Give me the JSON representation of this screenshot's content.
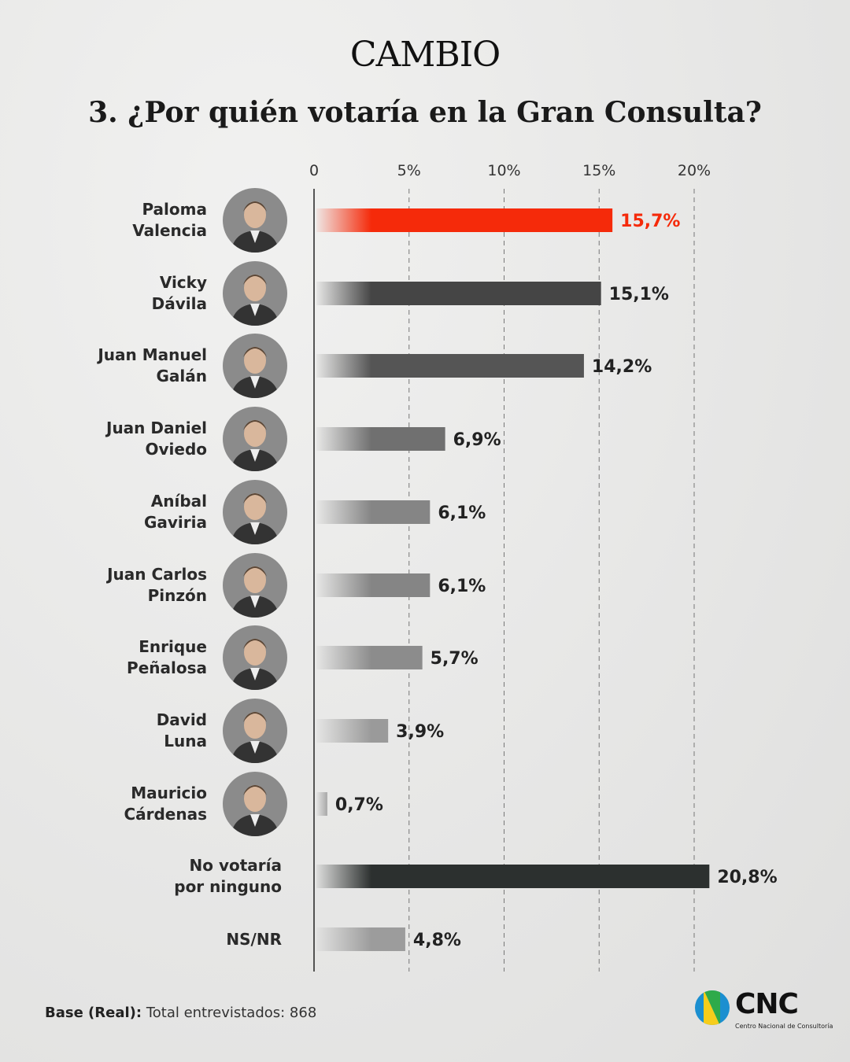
{
  "brand": "CAMBIO",
  "chart_data": {
    "type": "bar",
    "orientation": "horizontal",
    "title": "3. ¿Por quién votaría en la Gran Consulta?",
    "xlim": [
      0,
      20
    ],
    "ticks": [
      "0",
      "5%",
      "10%",
      "15%",
      "20%"
    ],
    "grid": "vertical dashed",
    "categories": [
      "Paloma Valencia",
      "Vicky Dávila",
      "Juan Manuel Galán",
      "Juan Daniel Oviedo",
      "Aníbal Gaviria",
      "Juan Carlos Pinzón",
      "Enrique Peñalosa",
      "David Luna",
      "Mauricio Cárdenas",
      "No votaría por ninguno",
      "NS/NR"
    ],
    "label_lines": [
      [
        "Paloma",
        "Valencia"
      ],
      [
        "Vicky",
        "Dávila"
      ],
      [
        "Juan Manuel",
        "Galán"
      ],
      [
        "Juan Daniel",
        "Oviedo"
      ],
      [
        "Aníbal",
        "Gaviria"
      ],
      [
        "Juan Carlos",
        "Pinzón"
      ],
      [
        "Enrique",
        "Peñalosa"
      ],
      [
        "David",
        "Luna"
      ],
      [
        "Mauricio",
        "Cárdenas"
      ],
      [
        "No votaría",
        "por ninguno"
      ],
      [
        "NS/NR"
      ]
    ],
    "values": [
      15.7,
      15.1,
      14.2,
      6.9,
      6.1,
      6.1,
      5.7,
      3.9,
      0.7,
      20.8,
      4.8
    ],
    "value_labels": [
      "15,7%",
      "15,1%",
      "14,2%",
      "6,9%",
      "6,1%",
      "6,1%",
      "5,7%",
      "3,9%",
      "0,7%",
      "20,8%",
      "4,8%"
    ],
    "colors": [
      "#f52a0a",
      "#454545",
      "#555555",
      "#707070",
      "#858585",
      "#858585",
      "#8c8c8c",
      "#9a9a9a",
      "#a8a8a8",
      "#2c302f",
      "#9c9c9c"
    ],
    "highlight_color": "#f52a0a",
    "has_photo": [
      true,
      true,
      true,
      true,
      true,
      true,
      true,
      true,
      true,
      false,
      false
    ]
  },
  "footer": {
    "base_label": "Base (Real):",
    "base_text": " Total entrevistados: 868"
  },
  "logo": {
    "name": "CNC",
    "subtitle": "Centro Nacional de Consultoría"
  }
}
